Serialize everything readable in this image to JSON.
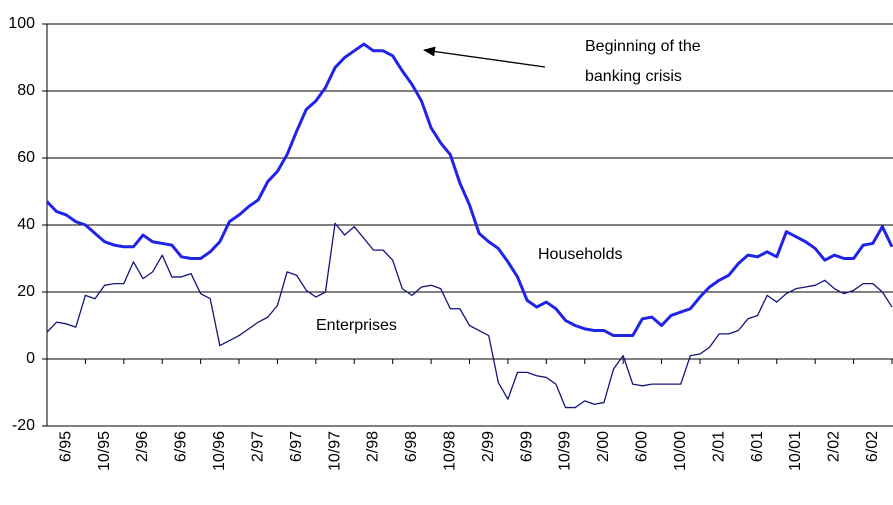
{
  "chart_data": {
    "type": "line",
    "categories": [
      null,
      null,
      "6/95",
      null,
      null,
      null,
      "10/95",
      null,
      null,
      null,
      "2/96",
      null,
      null,
      null,
      "6/96",
      null,
      null,
      null,
      "10/96",
      null,
      null,
      null,
      "2/97",
      null,
      null,
      null,
      "6/97",
      null,
      null,
      null,
      "10/97",
      null,
      null,
      null,
      "2/98",
      null,
      null,
      null,
      "6/98",
      null,
      null,
      null,
      "10/98",
      null,
      null,
      null,
      "2/99",
      null,
      null,
      null,
      "6/99",
      null,
      null,
      null,
      "10/99",
      null,
      null,
      null,
      "2/00",
      null,
      null,
      null,
      "6/00",
      null,
      null,
      null,
      "10/00",
      null,
      null,
      null,
      "2/01",
      null,
      null,
      null,
      "6/01",
      null,
      null,
      null,
      "10/01",
      null,
      null,
      null,
      "2/02",
      null,
      null,
      null,
      "6/02",
      null,
      null
    ],
    "series": [
      {
        "name": "Households",
        "color": "#1f24e6",
        "width": 3,
        "values": [
          47,
          44,
          43,
          41,
          40,
          37.5,
          35,
          34,
          33.5,
          33.5,
          37,
          35,
          34.5,
          34,
          30.5,
          30,
          30,
          32,
          35,
          41,
          43,
          45.5,
          47.5,
          53,
          56,
          61,
          68,
          74.5,
          77,
          81,
          87,
          90,
          92,
          94,
          92,
          92,
          90.5,
          86,
          82,
          77,
          69,
          64.5,
          61,
          52.5,
          46,
          37.5,
          35,
          33,
          29,
          24.5,
          17.5,
          15.5,
          17,
          15,
          11.5,
          10,
          9,
          8.5,
          8.5,
          7,
          7,
          7,
          12,
          12.5,
          10,
          13,
          14,
          15,
          18.5,
          21.5,
          23.5,
          25,
          28.5,
          31,
          30.5,
          32,
          30.5,
          38,
          36.5,
          35,
          33,
          29.5,
          31,
          30,
          30,
          34,
          34.5,
          39.5,
          33.5
        ]
      },
      {
        "name": "Enterprises",
        "color": "#15157a",
        "width": 1.3,
        "values": [
          8,
          11,
          10.5,
          9.5,
          19,
          18,
          22,
          22.5,
          22.5,
          29,
          24,
          26,
          31,
          24.5,
          24.5,
          25.5,
          19.5,
          18,
          4,
          5.5,
          7,
          9,
          11,
          12.5,
          16,
          26,
          25,
          20.5,
          18.5,
          20,
          40.5,
          37,
          39.5,
          36,
          32.5,
          32.5,
          29.5,
          21,
          19,
          21.5,
          22,
          21,
          15,
          15,
          10,
          8.5,
          7,
          -7,
          -12,
          -4,
          -4,
          -5,
          -5.5,
          -7.5,
          -14.5,
          -14.5,
          -12.5,
          -13.5,
          -13,
          -3,
          1,
          -7.5,
          -8,
          -7.5,
          -7.5,
          -7.5,
          -7.5,
          1,
          1.5,
          3.5,
          7.5,
          7.5,
          8.5,
          12,
          13,
          19,
          17,
          19.5,
          21,
          21.5,
          22,
          23.5,
          21,
          19.5,
          20.5,
          22.5,
          22.5,
          20,
          15.5
        ]
      }
    ],
    "ylim": [
      -20,
      100
    ],
    "yticks": [
      -20,
      0,
      20,
      40,
      60,
      80,
      100
    ],
    "grid": true,
    "annotation": [
      "Beginning of the",
      "banking crisis"
    ]
  }
}
